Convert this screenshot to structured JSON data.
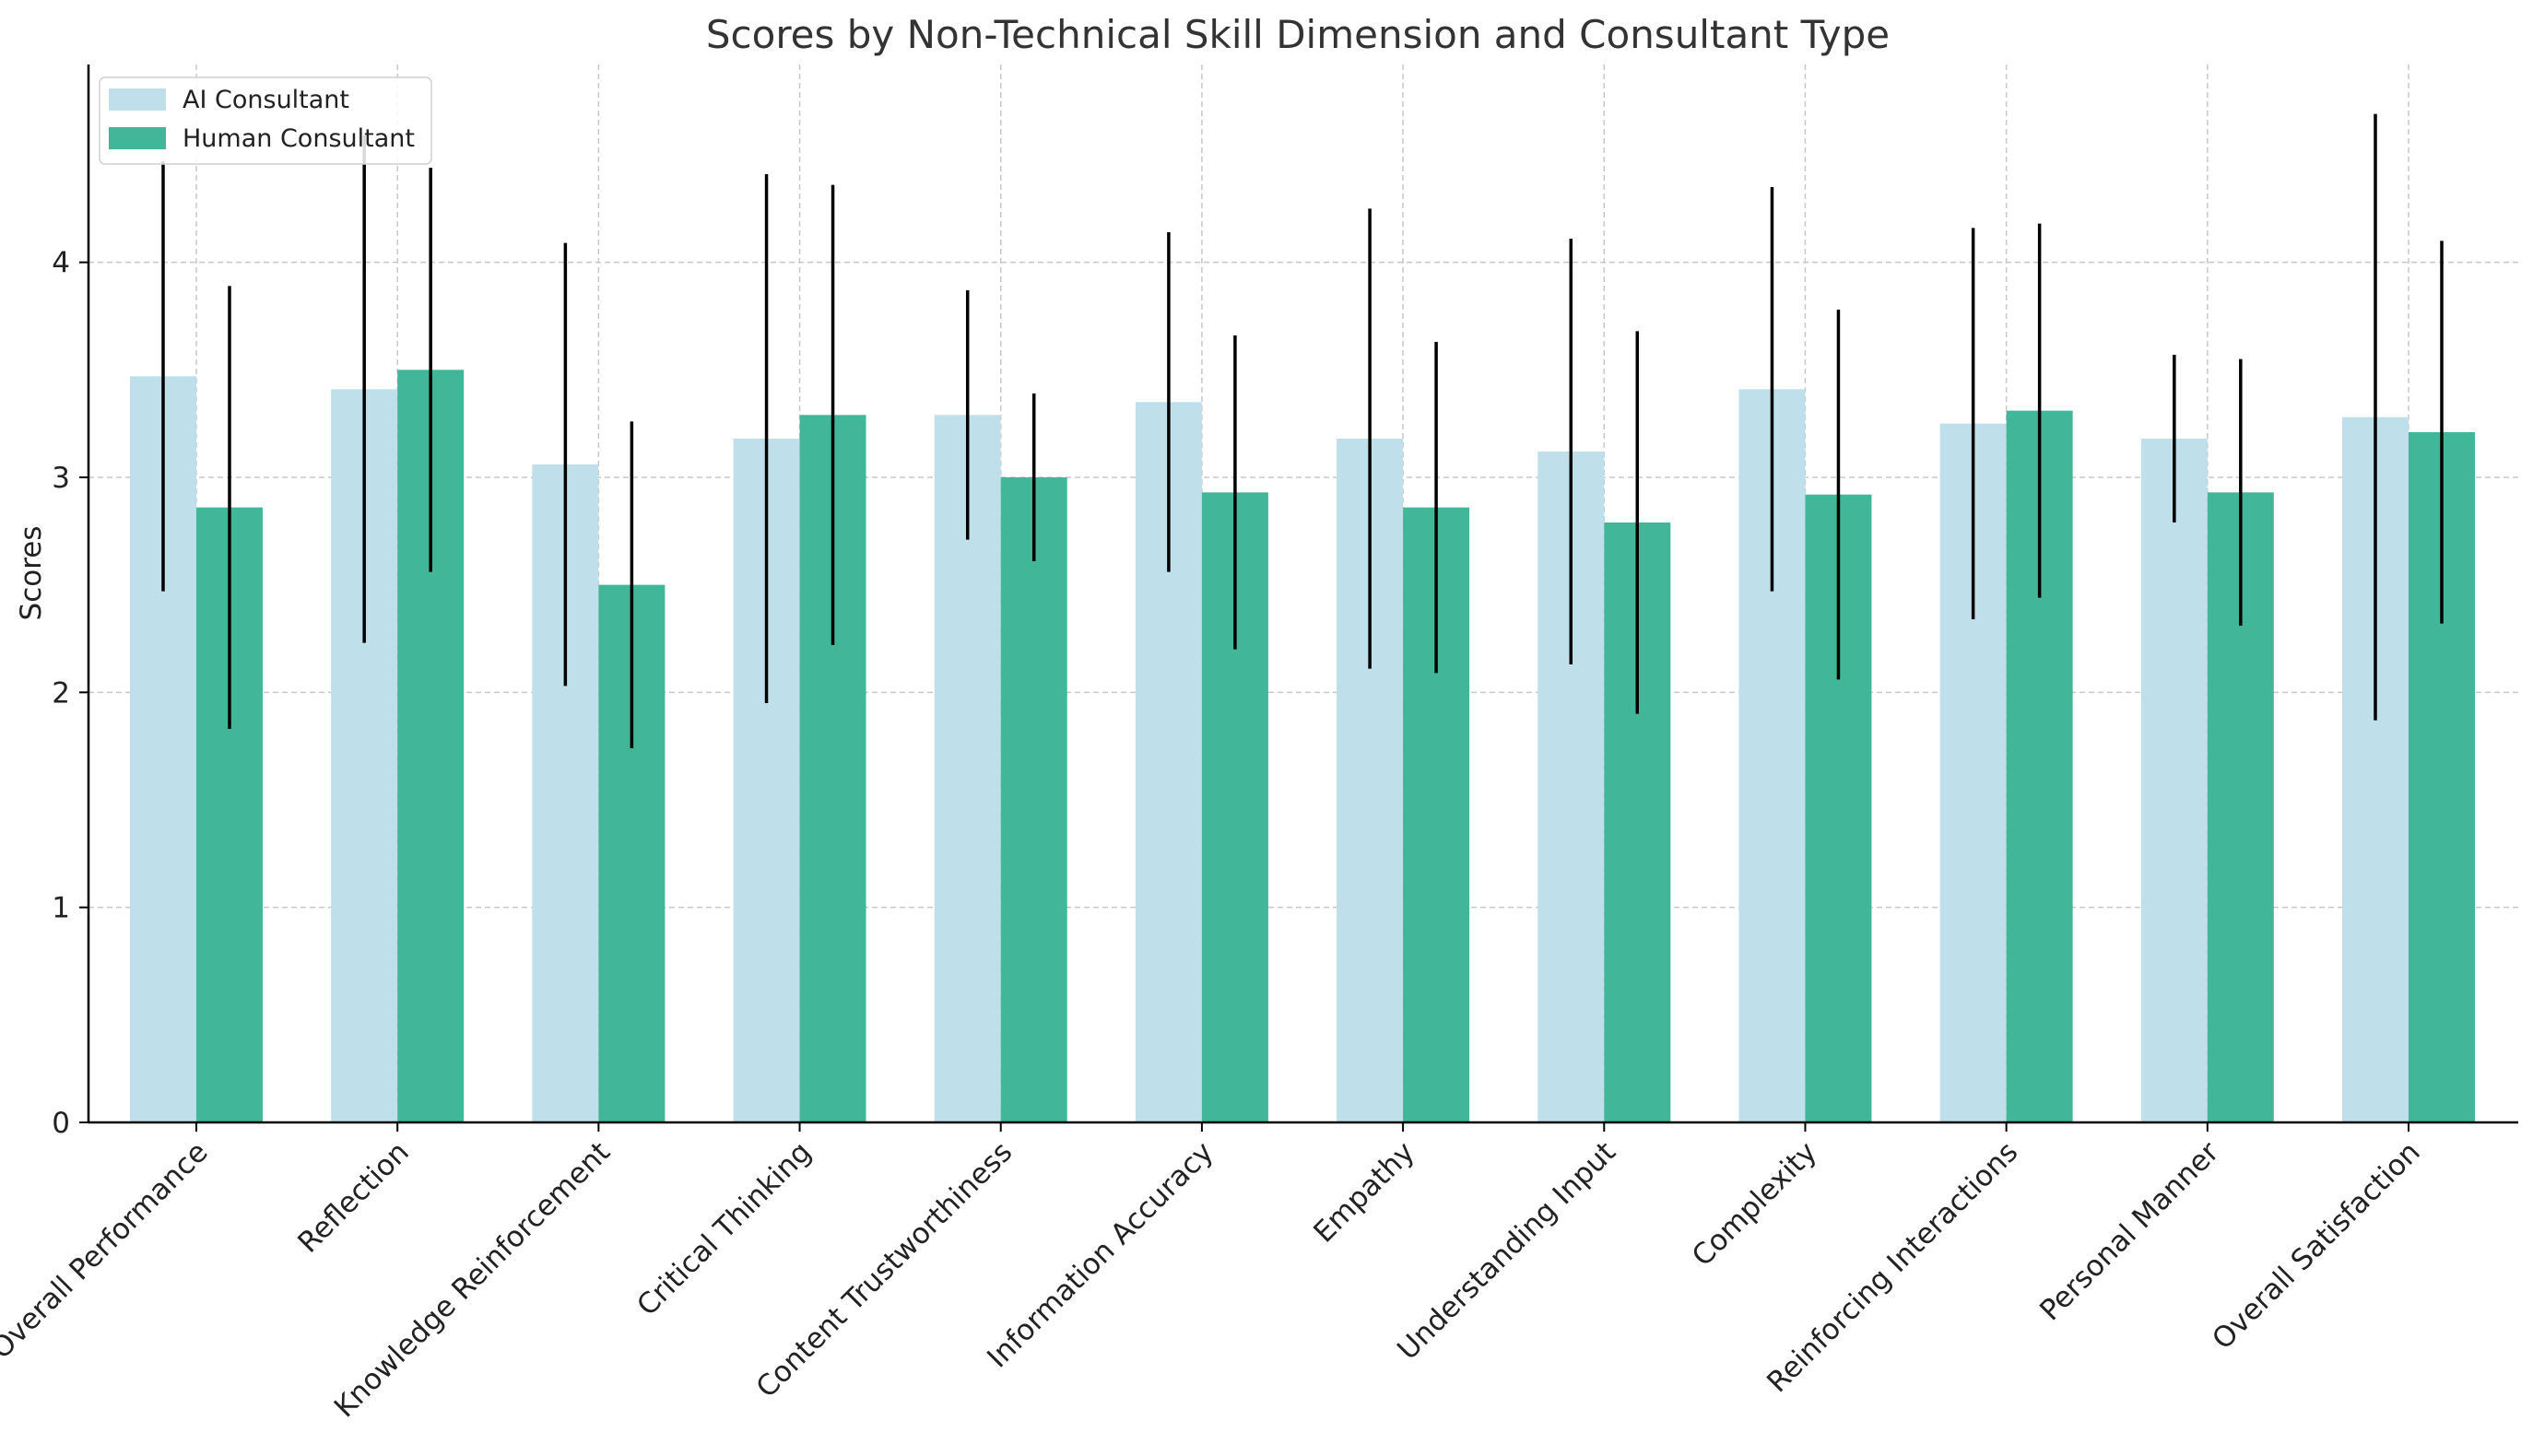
{
  "chart_data": {
    "type": "bar",
    "title": "Scores by Non-Technical Skill Dimension and Consultant Type",
    "xlabel": "",
    "ylabel": "Scores",
    "ylim": [
      0,
      4.92
    ],
    "yticks": [
      "0",
      "1",
      "2",
      "3",
      "4"
    ],
    "grid": true,
    "legend_position": "top-left",
    "categories": [
      "Overall Performance",
      "Reflection",
      "Knowledge Reinforcement",
      "Critical Thinking",
      "Content Trustworthiness",
      "Information Accuracy",
      "Empathy",
      "Understanding Input",
      "Complexity",
      "Reinforcing Interactions",
      "Personal Manner",
      "Overall Satisfaction"
    ],
    "series": [
      {
        "name": "AI Consultant",
        "color": "#bfdfea",
        "values": [
          3.47,
          3.41,
          3.06,
          3.18,
          3.29,
          3.35,
          3.18,
          3.12,
          3.41,
          3.25,
          3.18,
          3.28
        ],
        "errors": [
          1.0,
          1.18,
          1.03,
          1.23,
          0.58,
          0.79,
          1.07,
          0.99,
          0.94,
          0.91,
          0.39,
          1.41
        ]
      },
      {
        "name": "Human Consultant",
        "color": "#42b698",
        "values": [
          2.86,
          3.5,
          2.5,
          3.29,
          3.0,
          2.93,
          2.86,
          2.79,
          2.92,
          3.31,
          2.93,
          3.21
        ],
        "errors": [
          1.03,
          0.94,
          0.76,
          1.07,
          0.39,
          0.73,
          0.77,
          0.89,
          0.86,
          0.87,
          0.62,
          0.89
        ]
      }
    ]
  }
}
